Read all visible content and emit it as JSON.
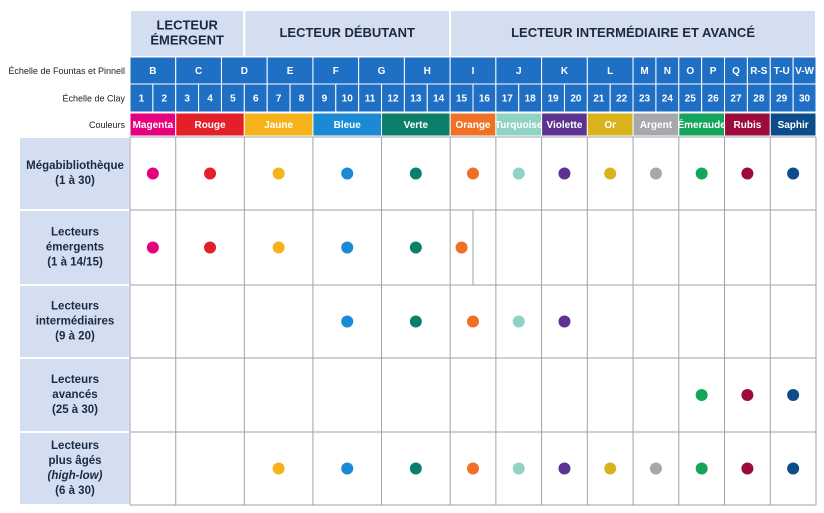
{
  "header": {
    "groups": [
      {
        "lines": [
          "LECTEUR",
          "ÉMERGENT"
        ]
      },
      {
        "lines": [
          "LECTEUR DÉBUTANT"
        ]
      },
      {
        "lines": [
          "LECTEUR INTERMÉDIAIRE ET AVANCÉ"
        ]
      }
    ],
    "fountas_label": "Échelle de Fountas et Pinnell",
    "fountas": [
      "B",
      "C",
      "D",
      "E",
      "F",
      "G",
      "H",
      "I",
      "J",
      "K",
      "L",
      "M",
      "N",
      "O",
      "P",
      "Q",
      "R-S",
      "T-U",
      "V-W"
    ],
    "clay_label": "Échelle de Clay",
    "clay": [
      1,
      2,
      3,
      4,
      5,
      6,
      7,
      8,
      9,
      10,
      11,
      12,
      13,
      14,
      15,
      16,
      17,
      18,
      19,
      20,
      21,
      22,
      23,
      24,
      25,
      26,
      27,
      28,
      29,
      30
    ],
    "colors_label": "Couleurs",
    "colors": [
      "Magenta",
      "Rouge",
      "Jaune",
      "Bleue",
      "Verte",
      "Orange",
      "Turquoise",
      "Violette",
      "Or",
      "Argent",
      "Émeraude",
      "Rubis",
      "Saphir"
    ]
  },
  "rows": [
    {
      "lines": [
        "Mégabibliothèque",
        "(1 à 30)"
      ]
    },
    {
      "lines": [
        "Lecteurs",
        "émergents",
        "(1 à 14/15)"
      ]
    },
    {
      "lines": [
        "Lecteurs",
        "intermédiaires",
        "(9 à 20)"
      ]
    },
    {
      "lines": [
        "Lecteurs",
        "avancés",
        "(25 à 30)"
      ]
    },
    {
      "lines": [
        "Lecteurs",
        "plus âgés",
        "(high-low)",
        "(6 à 30)"
      ]
    }
  ]
}
